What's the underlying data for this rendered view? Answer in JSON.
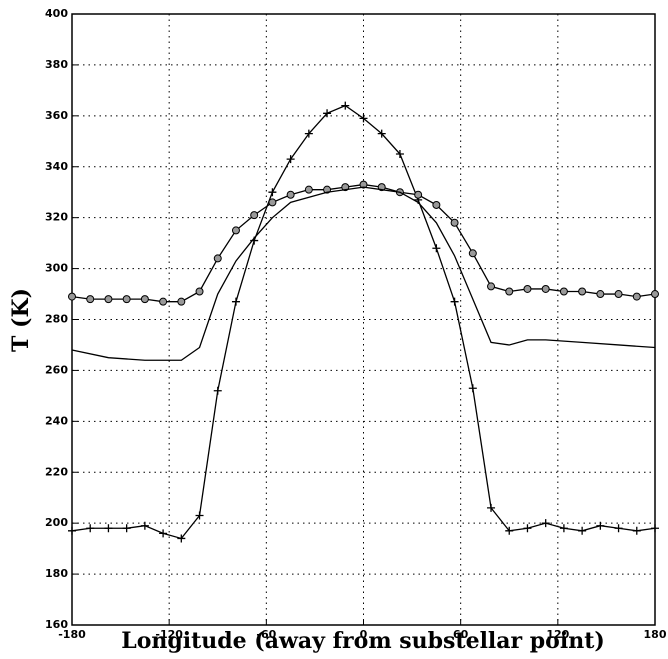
{
  "chart_data": {
    "type": "line",
    "xlabel": "Longitude (away from substellar point)",
    "ylabel": "T (K)",
    "xlim": [
      -180,
      180
    ],
    "xticks": [
      -180,
      -120,
      -60,
      0,
      60,
      120,
      180
    ],
    "ylim": [
      160,
      400
    ],
    "yticks": [
      160,
      180,
      200,
      220,
      240,
      260,
      280,
      300,
      320,
      340,
      360,
      380,
      400
    ],
    "grid": true,
    "series": [
      {
        "color": "#000000",
        "marker": "plus",
        "x": [
          -180,
          -168.75,
          -157.5,
          -146.25,
          -135,
          -123.75,
          -112.5,
          -101.25,
          -90,
          -78.75,
          -67.5,
          -56.25,
          -45,
          -33.75,
          -22.5,
          -11.25,
          0,
          11.25,
          22.5,
          33.75,
          45,
          56.25,
          67.5,
          78.75,
          90,
          101.25,
          112.5,
          123.75,
          135,
          146.25,
          157.5,
          168.75,
          180
        ],
        "values": [
          197,
          198,
          198,
          198,
          199,
          196,
          194,
          203,
          252,
          287,
          311,
          330,
          343,
          353,
          361,
          364,
          359,
          353,
          345,
          327,
          308,
          287,
          253,
          206,
          197,
          198,
          200,
          198,
          197,
          199,
          198,
          197,
          198
        ]
      },
      {
        "color": "#000000",
        "marker": "circle",
        "x": [
          -180,
          -168.75,
          -157.5,
          -146.25,
          -135,
          -123.75,
          -112.5,
          -101.25,
          -90,
          -78.75,
          -67.5,
          -56.25,
          -45,
          -33.75,
          -22.5,
          -11.25,
          0,
          11.25,
          22.5,
          33.75,
          45,
          56.25,
          67.5,
          78.75,
          90,
          101.25,
          112.5,
          123.75,
          135,
          146.25,
          157.5,
          168.75,
          180
        ],
        "values": [
          289,
          288,
          288,
          288,
          288,
          287,
          287,
          291,
          304,
          315,
          321,
          326,
          329,
          331,
          331,
          332,
          333,
          332,
          330,
          329,
          325,
          318,
          306,
          293,
          291,
          292,
          292,
          291,
          291,
          290,
          290,
          289,
          290
        ]
      },
      {
        "color": "#000000",
        "marker": "none",
        "x": [
          -180,
          -157.5,
          -135,
          -112.5,
          -101.25,
          -90,
          -78.75,
          -67.5,
          -56.25,
          -45,
          -22.5,
          0,
          22.5,
          33.75,
          45,
          56.25,
          67.5,
          78.75,
          90,
          101.25,
          112.5,
          135,
          157.5,
          180
        ],
        "values": [
          268,
          265,
          264,
          264,
          269,
          290,
          303,
          312,
          320,
          326,
          330,
          332,
          330,
          326,
          318,
          305,
          288,
          271,
          270,
          272,
          272,
          271,
          270,
          269
        ]
      }
    ]
  }
}
